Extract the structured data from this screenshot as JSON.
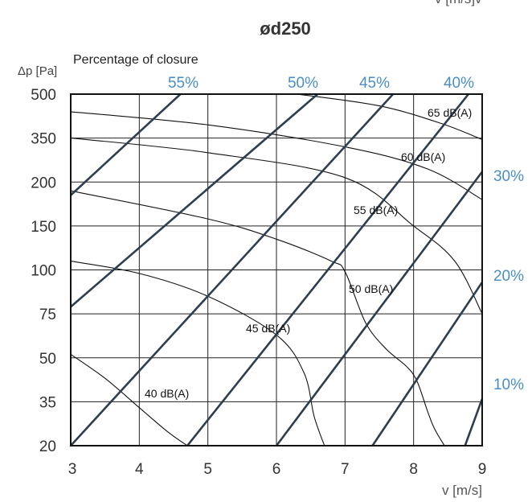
{
  "chart_data": {
    "type": "line",
    "title": "ød250",
    "corner_label": "v [m/s]v",
    "ylabel": "Δp [Pa]",
    "secondary_title": "Percentage of closure",
    "xlabel": "v [m/s]",
    "x_ticks": [
      "3",
      "4",
      "5",
      "6",
      "7",
      "8",
      "9"
    ],
    "y_ticks": [
      "20",
      "35",
      "50",
      "75",
      "100",
      "150",
      "200",
      "350",
      "500"
    ],
    "xlim": [
      3,
      9
    ],
    "grid": true,
    "closure_color": "#4a8ec4",
    "closure_series": [
      {
        "name": "55%",
        "points": [
          [
            3,
            185
          ],
          [
            4.6,
            500
          ]
        ]
      },
      {
        "name": "50%",
        "points": [
          [
            3,
            79
          ],
          [
            6.6,
            500
          ]
        ]
      },
      {
        "name": "45%",
        "points": [
          [
            3,
            20
          ],
          [
            7.7,
            500
          ]
        ]
      },
      {
        "name": "40%",
        "points": [
          [
            4.7,
            20
          ],
          [
            8.8,
            500
          ]
        ]
      },
      {
        "name": "30%",
        "points": [
          [
            6.0,
            20
          ],
          [
            9.0,
            235
          ]
        ]
      },
      {
        "name": "20%",
        "points": [
          [
            7.4,
            20
          ],
          [
            9.0,
            93
          ]
        ]
      },
      {
        "name": "10%",
        "points": [
          [
            8.75,
            20
          ],
          [
            9.0,
            36
          ]
        ]
      }
    ],
    "sound_series": [
      {
        "name": "65 dB(A)",
        "points": [
          [
            6.3,
            500
          ],
          [
            7.5,
            460
          ],
          [
            8.4,
            400
          ],
          [
            9.0,
            345
          ]
        ]
      },
      {
        "name": "60 dB(A)",
        "points": [
          [
            3.0,
            440
          ],
          [
            5.0,
            395
          ],
          [
            7.0,
            320
          ],
          [
            8.2,
            245
          ],
          [
            9.0,
            180
          ]
        ]
      },
      {
        "name": "55 dB(A)",
        "points": [
          [
            3.0,
            350
          ],
          [
            5.0,
            300
          ],
          [
            7.0,
            215
          ],
          [
            8.0,
            150
          ],
          [
            8.6,
            110
          ],
          [
            9.0,
            75
          ]
        ]
      },
      {
        "name": "50 dB(A)",
        "points": [
          [
            3.0,
            190
          ],
          [
            5.0,
            158
          ],
          [
            6.0,
            135
          ],
          [
            6.8,
            110
          ],
          [
            7.0,
            99
          ],
          [
            7.3,
            70
          ],
          [
            7.6,
            55
          ],
          [
            7.9,
            47
          ],
          [
            8.05,
            42
          ],
          [
            8.2,
            32
          ],
          [
            8.3,
            26
          ],
          [
            8.45,
            20
          ]
        ]
      },
      {
        "name": "45 dB(A)",
        "points": [
          [
            3.0,
            110
          ],
          [
            4.0,
            98
          ],
          [
            5.0,
            85
          ],
          [
            6.0,
            63
          ],
          [
            6.4,
            45
          ],
          [
            6.55,
            30
          ],
          [
            6.7,
            20
          ]
        ]
      },
      {
        "name": "40 dB(A)",
        "points": [
          [
            3.0,
            52
          ],
          [
            3.5,
            43
          ],
          [
            4.0,
            33
          ],
          [
            4.4,
            25
          ],
          [
            4.7,
            20
          ]
        ]
      }
    ]
  }
}
